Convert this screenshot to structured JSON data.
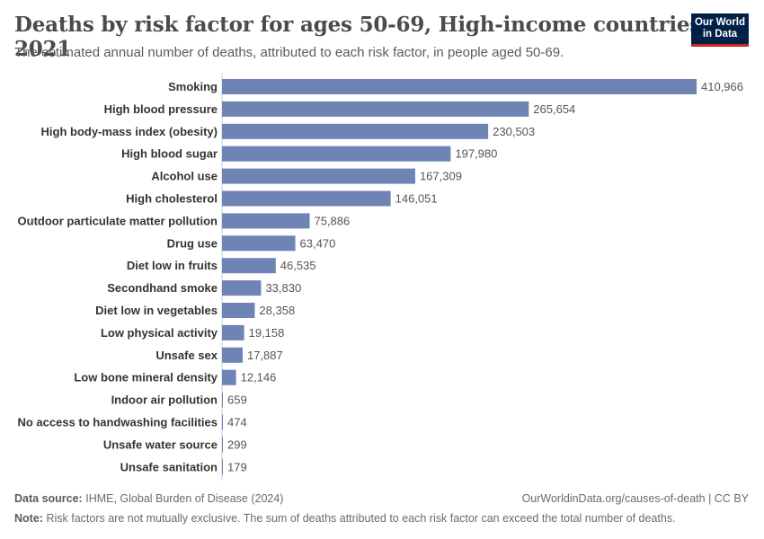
{
  "header": {
    "title": "Deaths by risk factor for ages 50-69, High-income countries, 2021",
    "subtitle": "The estimated annual number of deaths, attributed to each risk factor, in people aged 50-69.",
    "logo_line1": "Our World",
    "logo_line2": "in Data"
  },
  "footer": {
    "source_label": "Data source:",
    "source_text": "IHME, Global Burden of Disease (2024)",
    "url_license": "OurWorldinData.org/causes-of-death | CC BY",
    "note_label": "Note:",
    "note_text": "Risk factors are not mutually exclusive. The sum of deaths attributed to each risk factor can exceed the total number of deaths."
  },
  "colors": {
    "bar": "#6d84b4",
    "label": "#333333",
    "value": "#555555",
    "axis": "#cccccc"
  },
  "chart_data": {
    "type": "bar",
    "orientation": "horizontal",
    "categories": [
      "Smoking",
      "High blood pressure",
      "High body-mass index (obesity)",
      "High blood sugar",
      "Alcohol use",
      "High cholesterol",
      "Outdoor particulate matter pollution",
      "Drug use",
      "Diet low in fruits",
      "Secondhand smoke",
      "Diet low in vegetables",
      "Low physical activity",
      "Unsafe sex",
      "Low bone mineral density",
      "Indoor air pollution",
      "No access to handwashing facilities",
      "Unsafe water source",
      "Unsafe sanitation"
    ],
    "values": [
      410966,
      265654,
      230503,
      197980,
      167309,
      146051,
      75886,
      63470,
      46535,
      33830,
      28358,
      19158,
      17887,
      12146,
      659,
      474,
      299,
      179
    ],
    "value_labels": [
      "410,966",
      "265,654",
      "230,503",
      "197,980",
      "167,309",
      "146,051",
      "75,886",
      "63,470",
      "46,535",
      "33,830",
      "28,358",
      "19,158",
      "17,887",
      "12,146",
      "659",
      "474",
      "299",
      "179"
    ],
    "xlim": [
      0,
      410966
    ],
    "grid": false,
    "legend": "none"
  }
}
